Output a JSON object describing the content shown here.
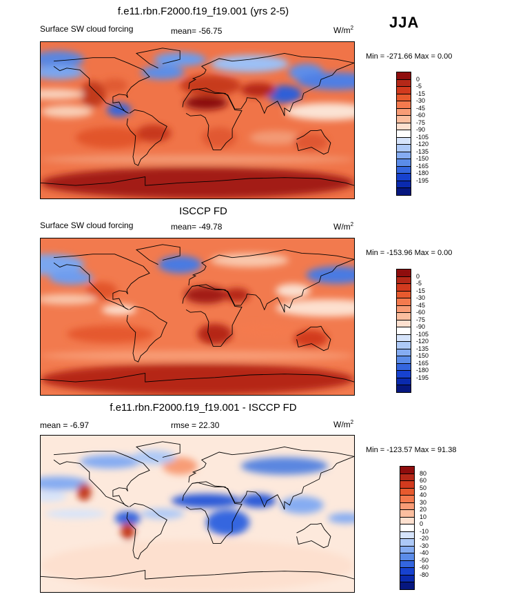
{
  "season": "JJA",
  "panels": [
    {
      "title": "f.e11.rbn.F2000.f19_f19.001 (yrs 2-5)",
      "left_label": "Surface SW cloud forcing",
      "center_label": "mean= -56.75",
      "units": "W/m",
      "units_sup": "2",
      "minmax": "Min = -271.66 Max =   0.00",
      "base_color": "#f07448",
      "blobs": [
        {
          "lon": -160,
          "lat": 70,
          "rx": 30,
          "ry": 10,
          "c": "#5a86e0"
        },
        {
          "lon": -20,
          "lat": 70,
          "rx": 30,
          "ry": 8,
          "c": "#6a9cee"
        },
        {
          "lon": 60,
          "lat": 65,
          "rx": 45,
          "ry": 10,
          "c": "#9cc0f5"
        },
        {
          "lon": 125,
          "lat": 55,
          "rx": 20,
          "ry": 10,
          "c": "#5f8ee8"
        },
        {
          "lon": 100,
          "lat": 30,
          "rx": 20,
          "ry": 10,
          "c": "#2e5fd8"
        },
        {
          "lon": 160,
          "lat": 45,
          "rx": 45,
          "ry": 10,
          "c": "#4f7fe4"
        },
        {
          "lon": -160,
          "lat": 55,
          "rx": 30,
          "ry": 8,
          "c": "#7aa6f0"
        },
        {
          "lon": -40,
          "lat": 55,
          "rx": 25,
          "ry": 8,
          "c": "#5c8ee8"
        },
        {
          "lon": 15,
          "lat": 40,
          "rx": 35,
          "ry": 12,
          "c": "#c73a1e"
        },
        {
          "lon": 70,
          "lat": 35,
          "rx": 20,
          "ry": 8,
          "c": "#b52818"
        },
        {
          "lon": 10,
          "lat": 20,
          "rx": 25,
          "ry": 8,
          "c": "#8a0d0d"
        },
        {
          "lon": -120,
          "lat": 30,
          "rx": 15,
          "ry": 15,
          "c": "#c23a1c"
        },
        {
          "lon": -95,
          "lat": 40,
          "rx": 15,
          "ry": 8,
          "c": "#e05a30"
        },
        {
          "lon": -90,
          "lat": 12,
          "rx": 14,
          "ry": 8,
          "c": "#3a66d8"
        },
        {
          "lon": -165,
          "lat": 30,
          "rx": 35,
          "ry": 6,
          "c": "#f9d4bf"
        },
        {
          "lon": 150,
          "lat": 10,
          "rx": 50,
          "ry": 10,
          "c": "#fbe3d4"
        },
        {
          "lon": -150,
          "lat": 10,
          "rx": 30,
          "ry": 7,
          "c": "#f9d0b8"
        },
        {
          "lon": -100,
          "lat": -20,
          "rx": 40,
          "ry": 12,
          "c": "#e2542c"
        },
        {
          "lon": -50,
          "lat": -15,
          "rx": 20,
          "ry": 10,
          "c": "#c7381c"
        },
        {
          "lon": 25,
          "lat": -20,
          "rx": 20,
          "ry": 12,
          "c": "#e15830"
        },
        {
          "lon": 90,
          "lat": -20,
          "rx": 30,
          "ry": 8,
          "c": "#f39a74"
        },
        {
          "lon": 130,
          "lat": -25,
          "rx": 20,
          "ry": 10,
          "c": "#df5630"
        },
        {
          "lon": 0,
          "lat": -45,
          "rx": 180,
          "ry": 5,
          "c": "#f39a74"
        },
        {
          "lon": 0,
          "lat": -72,
          "rx": 180,
          "ry": 18,
          "c": "#a31c12"
        }
      ],
      "colorbar": {
        "labels": [
          "0",
          "-5",
          "-15",
          "-30",
          "-45",
          "-60",
          "-75",
          "-90",
          "-105",
          "-120",
          "-135",
          "-150",
          "-165",
          "-180",
          "-195"
        ],
        "colors": [
          "#8f0d0d",
          "#b52818",
          "#d23a1e",
          "#e75a2e",
          "#f47a4e",
          "#f89c76",
          "#fbbe9f",
          "#fde0cf",
          "#ffffff",
          "#d6e4fb",
          "#adc9f7",
          "#85acf2",
          "#5b8ce9",
          "#3466df",
          "#1742cf",
          "#0a2aae",
          "#06177f"
        ]
      }
    },
    {
      "title": "ISCCP FD",
      "left_label": "Surface SW cloud forcing",
      "center_label": "mean= -49.78",
      "units": "W/m",
      "units_sup": "2",
      "minmax": "Min = -153.96 Max =   0.00",
      "base_color": "#f27a4e",
      "blobs": [
        {
          "lon": -170,
          "lat": 60,
          "rx": 40,
          "ry": 12,
          "c": "#7aa6f0"
        },
        {
          "lon": 160,
          "lat": 48,
          "rx": 35,
          "ry": 10,
          "c": "#4a7ae2"
        },
        {
          "lon": -145,
          "lat": 45,
          "rx": 25,
          "ry": 8,
          "c": "#6e9cee"
        },
        {
          "lon": -20,
          "lat": 60,
          "rx": 25,
          "ry": 10,
          "c": "#4a7ae2"
        },
        {
          "lon": 60,
          "lat": 65,
          "rx": 45,
          "ry": 8,
          "c": "#f9c8ad"
        },
        {
          "lon": 110,
          "lat": 30,
          "rx": 20,
          "ry": 8,
          "c": "#fbe0d0"
        },
        {
          "lon": 10,
          "lat": 25,
          "rx": 25,
          "ry": 10,
          "c": "#a31c12"
        },
        {
          "lon": 45,
          "lat": 25,
          "rx": 15,
          "ry": 8,
          "c": "#b52818"
        },
        {
          "lon": -110,
          "lat": 30,
          "rx": 18,
          "ry": 10,
          "c": "#e2542c"
        },
        {
          "lon": -150,
          "lat": 20,
          "rx": 35,
          "ry": 6,
          "c": "#f9c8ad"
        },
        {
          "lon": 150,
          "lat": 10,
          "rx": 60,
          "ry": 10,
          "c": "#fde0cf"
        },
        {
          "lon": -90,
          "lat": 8,
          "rx": 20,
          "ry": 6,
          "c": "#fde0cf"
        },
        {
          "lon": -100,
          "lat": -20,
          "rx": 50,
          "ry": 10,
          "c": "#e5582e"
        },
        {
          "lon": 20,
          "lat": -20,
          "rx": 20,
          "ry": 12,
          "c": "#b52818"
        },
        {
          "lon": 130,
          "lat": -25,
          "rx": 20,
          "ry": 10,
          "c": "#d23a1e"
        },
        {
          "lon": 80,
          "lat": -15,
          "rx": 35,
          "ry": 8,
          "c": "#f47a4e"
        },
        {
          "lon": 0,
          "lat": -45,
          "rx": 180,
          "ry": 6,
          "c": "#f89c76"
        },
        {
          "lon": 0,
          "lat": -72,
          "rx": 180,
          "ry": 18,
          "c": "#b52818"
        }
      ],
      "colorbar": {
        "labels": [
          "0",
          "-5",
          "-15",
          "-30",
          "-45",
          "-60",
          "-75",
          "-90",
          "-105",
          "-120",
          "-135",
          "-150",
          "-165",
          "-180",
          "-195"
        ],
        "colors": [
          "#8f0d0d",
          "#b52818",
          "#d23a1e",
          "#e75a2e",
          "#f47a4e",
          "#f89c76",
          "#fbbe9f",
          "#fde0cf",
          "#ffffff",
          "#d6e4fb",
          "#adc9f7",
          "#85acf2",
          "#5b8ce9",
          "#3466df",
          "#1742cf",
          "#0a2aae",
          "#06177f"
        ]
      }
    },
    {
      "title": "f.e11.rbn.F2000.f19_f19.001 - ISCCP FD",
      "left_label": "mean =  -6.97",
      "center_label": "rmse =  22.30",
      "units": "W/m",
      "units_sup": "2",
      "minmax": "Min = -123.57 Max =  91.38",
      "base_color": "#fde9dc",
      "blobs": [
        {
          "lon": 100,
          "lat": 55,
          "rx": 50,
          "ry": 10,
          "c": "#5a86e0"
        },
        {
          "lon": -100,
          "lat": 60,
          "rx": 35,
          "ry": 8,
          "c": "#85acf2"
        },
        {
          "lon": -20,
          "lat": 55,
          "rx": 20,
          "ry": 10,
          "c": "#f89c76"
        },
        {
          "lon": -50,
          "lat": 65,
          "rx": 25,
          "ry": 8,
          "c": "#adc9f7"
        },
        {
          "lon": -160,
          "lat": 35,
          "rx": 35,
          "ry": 8,
          "c": "#85acf2"
        },
        {
          "lon": -170,
          "lat": 20,
          "rx": 20,
          "ry": 6,
          "c": "#d6e4fb"
        },
        {
          "lon": 10,
          "lat": 15,
          "rx": 40,
          "ry": 8,
          "c": "#2c5ad8"
        },
        {
          "lon": 70,
          "lat": 15,
          "rx": 20,
          "ry": 8,
          "c": "#2c5ad8"
        },
        {
          "lon": 35,
          "lat": -10,
          "rx": 25,
          "ry": 15,
          "c": "#3466df"
        },
        {
          "lon": 120,
          "lat": 10,
          "rx": 25,
          "ry": 10,
          "c": "#85acf2"
        },
        {
          "lon": -130,
          "lat": 25,
          "rx": 8,
          "ry": 10,
          "c": "#c33a1c"
        },
        {
          "lon": -80,
          "lat": -5,
          "rx": 15,
          "ry": 8,
          "c": "#3466df"
        },
        {
          "lon": -80,
          "lat": -20,
          "rx": 8,
          "ry": 10,
          "c": "#c33a1c"
        },
        {
          "lon": -40,
          "lat": 0,
          "rx": 25,
          "ry": 6,
          "c": "#adc9f7"
        },
        {
          "lon": -140,
          "lat": 0,
          "rx": 35,
          "ry": 5,
          "c": "#d6e4fb"
        },
        {
          "lon": 170,
          "lat": -5,
          "rx": 20,
          "ry": 6,
          "c": "#85acf2"
        },
        {
          "lon": 0,
          "lat": -60,
          "rx": 180,
          "ry": 30,
          "c": "#fde0cf"
        }
      ],
      "colorbar": {
        "labels": [
          "80",
          "60",
          "50",
          "40",
          "30",
          "20",
          "10",
          "0",
          "-10",
          "-20",
          "-30",
          "-40",
          "-50",
          "-60",
          "-80"
        ],
        "colors": [
          "#8f0d0d",
          "#b52818",
          "#d23a1e",
          "#e75a2e",
          "#f47a4e",
          "#f89c76",
          "#fbbe9f",
          "#fde0cf",
          "#ffffff",
          "#d6e4fb",
          "#adc9f7",
          "#85acf2",
          "#5b8ce9",
          "#3466df",
          "#1742cf",
          "#0a2aae",
          "#06177f"
        ]
      }
    }
  ],
  "chart_data": [
    {
      "type": "heatmap",
      "title": "f.e11.rbn.F2000.f19_f19.001 (yrs 2-5)",
      "variable": "Surface SW cloud forcing",
      "units": "W/m2",
      "season": "JJA",
      "mean": -56.75,
      "min": -271.66,
      "max": 0.0,
      "contour_levels": [
        0,
        -5,
        -15,
        -30,
        -45,
        -60,
        -75,
        -90,
        -105,
        -120,
        -135,
        -150,
        -165,
        -180,
        -195
      ]
    },
    {
      "type": "heatmap",
      "title": "ISCCP FD",
      "variable": "Surface SW cloud forcing",
      "units": "W/m2",
      "season": "JJA",
      "mean": -49.78,
      "min": -153.96,
      "max": 0.0,
      "contour_levels": [
        0,
        -5,
        -15,
        -30,
        -45,
        -60,
        -75,
        -90,
        -105,
        -120,
        -135,
        -150,
        -165,
        -180,
        -195
      ]
    },
    {
      "type": "heatmap",
      "title": "f.e11.rbn.F2000.f19_f19.001 - ISCCP FD",
      "units": "W/m2",
      "season": "JJA",
      "mean": -6.97,
      "rmse": 22.3,
      "min": -123.57,
      "max": 91.38,
      "contour_levels": [
        80,
        60,
        50,
        40,
        30,
        20,
        10,
        0,
        -10,
        -20,
        -30,
        -40,
        -50,
        -60,
        -80
      ]
    }
  ]
}
